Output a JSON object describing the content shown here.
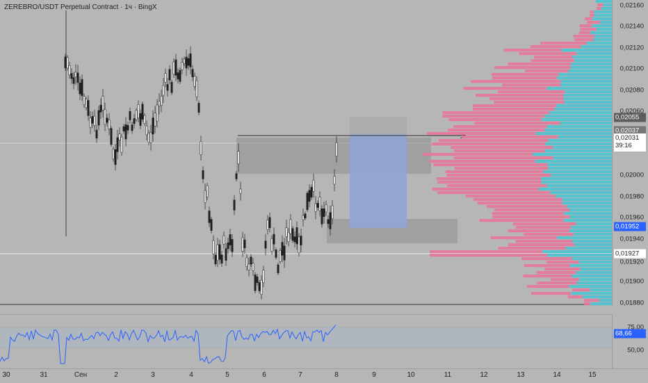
{
  "header": {
    "title": "ZEREBRO/USDT Perpetual Contract · 1ч · BingX"
  },
  "price_axis": {
    "ticks": [
      "0,02160",
      "0,02140",
      "0,02120",
      "0,02100",
      "0,02080",
      "0,02060",
      "0,02000",
      "0,01980",
      "0,01960",
      "0,01940",
      "0,01920",
      "0,01900",
      "0,01880"
    ],
    "badges": {
      "level_high": "0,02055",
      "level_mid": "0,02037",
      "last_price": "0,02031",
      "countdown": "39:16",
      "level_blue": "0,01952",
      "level_low": "0,01927"
    }
  },
  "rsi": {
    "value": "68,66",
    "ticks": [
      "75,00",
      "50,00"
    ]
  },
  "time_axis": {
    "labels": [
      "30",
      "31",
      "Сен",
      "2",
      "3",
      "4",
      "5",
      "6",
      "7",
      "8",
      "9",
      "10",
      "11",
      "12",
      "13",
      "14",
      "15"
    ]
  },
  "colors": {
    "bg": "#b6b6b6",
    "profile_pink": "#e8779b",
    "profile_cyan": "#4ec8d2",
    "rsi_line": "#2962ff",
    "blue_badge": "#2962ff",
    "dark_badge": "#5d5d5d"
  },
  "chart_data": {
    "type": "candlestick",
    "y_range": [
      0.01878,
      0.02168
    ],
    "time_labels": [
      "30",
      "31",
      "Сен",
      "2",
      "3",
      "4",
      "5",
      "6",
      "7",
      "8",
      "9",
      "10",
      "11",
      "12",
      "13",
      "14",
      "15"
    ],
    "key_levels": [
      0.02055,
      0.02037,
      0.02031,
      0.01952,
      0.01927
    ],
    "rsi_last": 68.66
  }
}
